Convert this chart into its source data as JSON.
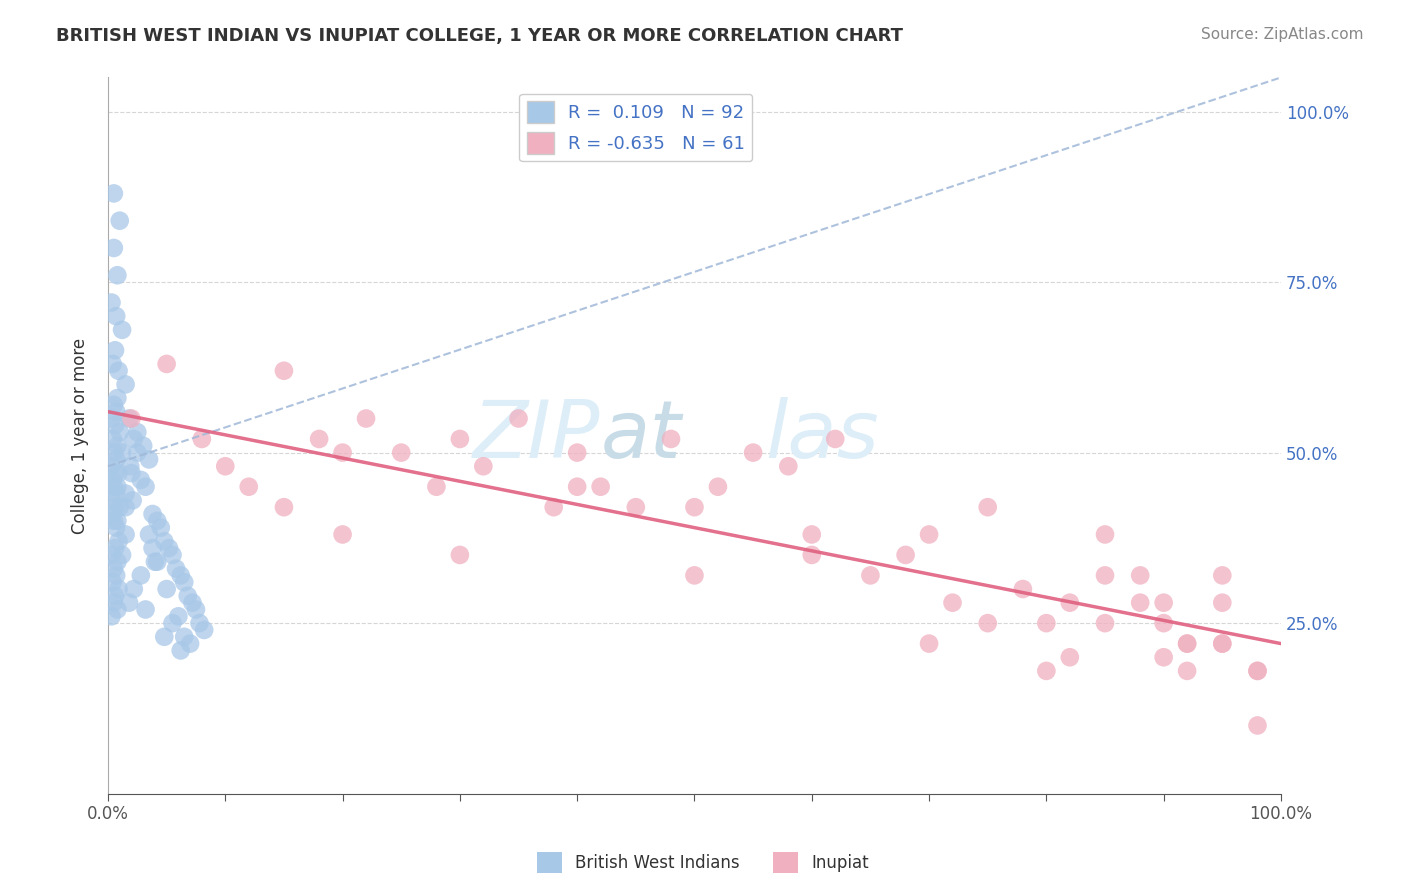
{
  "title": "BRITISH WEST INDIAN VS INUPIAT COLLEGE, 1 YEAR OR MORE CORRELATION CHART",
  "source": "Source: ZipAtlas.com",
  "ylabel": "College, 1 year or more",
  "xlim": [
    0.0,
    1.0
  ],
  "ylim": [
    0.0,
    1.05
  ],
  "xtick_positions": [
    0.0,
    0.1,
    0.2,
    0.3,
    0.4,
    0.5,
    0.6,
    0.7,
    0.8,
    0.9,
    1.0
  ],
  "xtick_labels_ends": [
    "0.0%",
    "100.0%"
  ],
  "ytick_positions": [
    0.25,
    0.5,
    0.75,
    1.0
  ],
  "ytick_labels": [
    "25.0%",
    "50.0%",
    "75.0%",
    "100.0%"
  ],
  "blue_color": "#a8c8e8",
  "pink_color": "#f0b0c0",
  "trend_blue_color": "#a0b8d8",
  "trend_pink_color": "#e06080",
  "watermark_color": "#ddeef8",
  "background_color": "#ffffff",
  "grid_color": "#cccccc",
  "blue_scatter_x": [
    0.005,
    0.01,
    0.005,
    0.008,
    0.003,
    0.007,
    0.012,
    0.006,
    0.004,
    0.009,
    0.015,
    0.008,
    0.005,
    0.007,
    0.003,
    0.006,
    0.01,
    0.004,
    0.008,
    0.012,
    0.005,
    0.007,
    0.003,
    0.009,
    0.006,
    0.004,
    0.008,
    0.005,
    0.007,
    0.003,
    0.006,
    0.01,
    0.004,
    0.008,
    0.005,
    0.007,
    0.015,
    0.009,
    0.006,
    0.012,
    0.003,
    0.008,
    0.005,
    0.007,
    0.004,
    0.009,
    0.006,
    0.005,
    0.008,
    0.003,
    0.018,
    0.022,
    0.025,
    0.019,
    0.028,
    0.032,
    0.021,
    0.015,
    0.038,
    0.042,
    0.045,
    0.035,
    0.048,
    0.052,
    0.055,
    0.04,
    0.058,
    0.062,
    0.065,
    0.05,
    0.068,
    0.072,
    0.075,
    0.06,
    0.078,
    0.082,
    0.065,
    0.07,
    0.025,
    0.03,
    0.035,
    0.02,
    0.015,
    0.038,
    0.042,
    0.028,
    0.022,
    0.018,
    0.032,
    0.055,
    0.048,
    0.062
  ],
  "blue_scatter_y": [
    0.88,
    0.84,
    0.8,
    0.76,
    0.72,
    0.7,
    0.68,
    0.65,
    0.63,
    0.62,
    0.6,
    0.58,
    0.57,
    0.56,
    0.55,
    0.54,
    0.53,
    0.52,
    0.51,
    0.5,
    0.5,
    0.49,
    0.48,
    0.47,
    0.47,
    0.46,
    0.45,
    0.45,
    0.44,
    0.43,
    0.42,
    0.42,
    0.41,
    0.4,
    0.4,
    0.39,
    0.38,
    0.37,
    0.36,
    0.35,
    0.35,
    0.34,
    0.33,
    0.32,
    0.31,
    0.3,
    0.29,
    0.28,
    0.27,
    0.26,
    0.55,
    0.52,
    0.5,
    0.48,
    0.46,
    0.45,
    0.43,
    0.42,
    0.41,
    0.4,
    0.39,
    0.38,
    0.37,
    0.36,
    0.35,
    0.34,
    0.33,
    0.32,
    0.31,
    0.3,
    0.29,
    0.28,
    0.27,
    0.26,
    0.25,
    0.24,
    0.23,
    0.22,
    0.53,
    0.51,
    0.49,
    0.47,
    0.44,
    0.36,
    0.34,
    0.32,
    0.3,
    0.28,
    0.27,
    0.25,
    0.23,
    0.21
  ],
  "pink_scatter_x": [
    0.02,
    0.05,
    0.1,
    0.08,
    0.15,
    0.12,
    0.18,
    0.22,
    0.2,
    0.25,
    0.28,
    0.3,
    0.15,
    0.32,
    0.35,
    0.38,
    0.2,
    0.4,
    0.42,
    0.45,
    0.48,
    0.5,
    0.52,
    0.55,
    0.3,
    0.58,
    0.6,
    0.62,
    0.65,
    0.4,
    0.68,
    0.7,
    0.72,
    0.75,
    0.5,
    0.78,
    0.8,
    0.82,
    0.85,
    0.6,
    0.88,
    0.9,
    0.92,
    0.95,
    0.98,
    0.7,
    0.85,
    0.9,
    0.95,
    0.8,
    0.88,
    0.92,
    0.75,
    0.82,
    0.95,
    0.98,
    0.85,
    0.9,
    0.92,
    0.95,
    0.98
  ],
  "pink_scatter_y": [
    0.55,
    0.63,
    0.48,
    0.52,
    0.62,
    0.45,
    0.52,
    0.55,
    0.5,
    0.5,
    0.45,
    0.52,
    0.42,
    0.48,
    0.55,
    0.42,
    0.38,
    0.5,
    0.45,
    0.42,
    0.52,
    0.42,
    0.45,
    0.5,
    0.35,
    0.48,
    0.38,
    0.52,
    0.32,
    0.45,
    0.35,
    0.38,
    0.28,
    0.42,
    0.32,
    0.3,
    0.25,
    0.28,
    0.38,
    0.35,
    0.32,
    0.28,
    0.22,
    0.32,
    0.1,
    0.22,
    0.32,
    0.25,
    0.28,
    0.18,
    0.28,
    0.22,
    0.25,
    0.2,
    0.22,
    0.18,
    0.25,
    0.2,
    0.18,
    0.22,
    0.18
  ],
  "blue_trend_x": [
    0.0,
    1.0
  ],
  "blue_trend_y": [
    0.48,
    1.05
  ],
  "pink_trend_x": [
    0.0,
    1.0
  ],
  "pink_trend_y": [
    0.56,
    0.22
  ]
}
